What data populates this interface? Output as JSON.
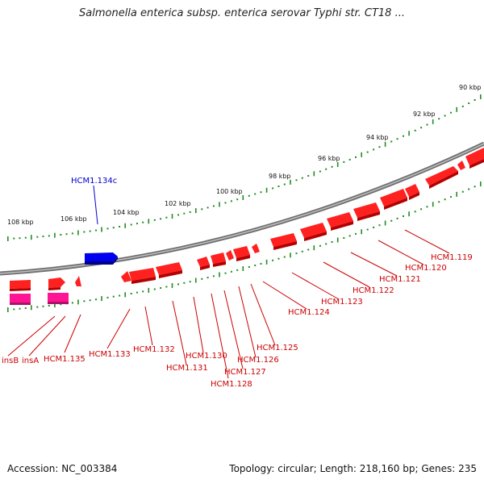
{
  "title": "Salmonella enterica subsp. enterica serovar Typhi str. CT18 ...",
  "footer": {
    "accession": "Accession: NC_003384",
    "summary": "Topology: circular; Length: 218,160 bp; Genes: 235"
  },
  "colors": {
    "forward": "#ff0000",
    "reverse_blue": "#0000ee",
    "insertion": "#ff1493",
    "backbone": "#888888",
    "ticks": "#228b22"
  },
  "scale_labels": [
    "90 kbp",
    "92 kbp",
    "94 kbp",
    "96 kbp",
    "98 kbp",
    "100 kbp",
    "102 kbp",
    "104 kbp",
    "106 kbp",
    "108 kbp"
  ],
  "gene_labels_red": [
    "HCM1.119",
    "HCM1.120",
    "HCM1.121",
    "HCM1.122",
    "HCM1.123",
    "HCM1.124",
    "HCM1.125",
    "HCM1.126",
    "HCM1.127",
    "HCM1.128",
    "HCM1.130",
    "HCM1.131",
    "HCM1.132",
    "HCM1.133",
    "HCM1.135",
    "insA",
    "insB"
  ],
  "gene_label_blue": "HCM1.134c"
}
